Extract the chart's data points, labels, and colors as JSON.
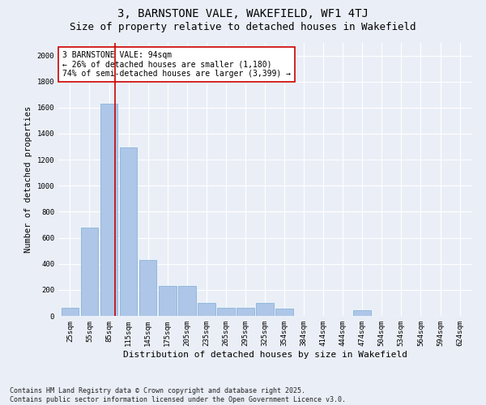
{
  "title": "3, BARNSTONE VALE, WAKEFIELD, WF1 4TJ",
  "subtitle": "Size of property relative to detached houses in Wakefield",
  "xlabel": "Distribution of detached houses by size in Wakefield",
  "ylabel": "Number of detached properties",
  "categories": [
    "25sqm",
    "55sqm",
    "85sqm",
    "115sqm",
    "145sqm",
    "175sqm",
    "205sqm",
    "235sqm",
    "265sqm",
    "295sqm",
    "325sqm",
    "354sqm",
    "384sqm",
    "414sqm",
    "444sqm",
    "474sqm",
    "504sqm",
    "534sqm",
    "564sqm",
    "594sqm",
    "624sqm"
  ],
  "values": [
    65,
    680,
    1630,
    1295,
    430,
    230,
    230,
    100,
    65,
    65,
    100,
    55,
    0,
    0,
    0,
    45,
    0,
    0,
    0,
    0,
    0
  ],
  "bar_color": "#aec6e8",
  "bar_edge_color": "#7aadd4",
  "vline_color": "#cc0000",
  "annotation_text": "3 BARNSTONE VALE: 94sqm\n← 26% of detached houses are smaller (1,180)\n74% of semi-detached houses are larger (3,399) →",
  "annotation_box_color": "#ffffff",
  "annotation_box_edge_color": "#cc0000",
  "ylim": [
    0,
    2100
  ],
  "yticks": [
    0,
    200,
    400,
    600,
    800,
    1000,
    1200,
    1400,
    1600,
    1800,
    2000
  ],
  "background_color": "#eaeff7",
  "grid_color": "#ffffff",
  "footnote": "Contains HM Land Registry data © Crown copyright and database right 2025.\nContains public sector information licensed under the Open Government Licence v3.0.",
  "title_fontsize": 10,
  "subtitle_fontsize": 9,
  "xlabel_fontsize": 8,
  "ylabel_fontsize": 7.5,
  "tick_fontsize": 6.5,
  "annotation_fontsize": 7,
  "footnote_fontsize": 6
}
